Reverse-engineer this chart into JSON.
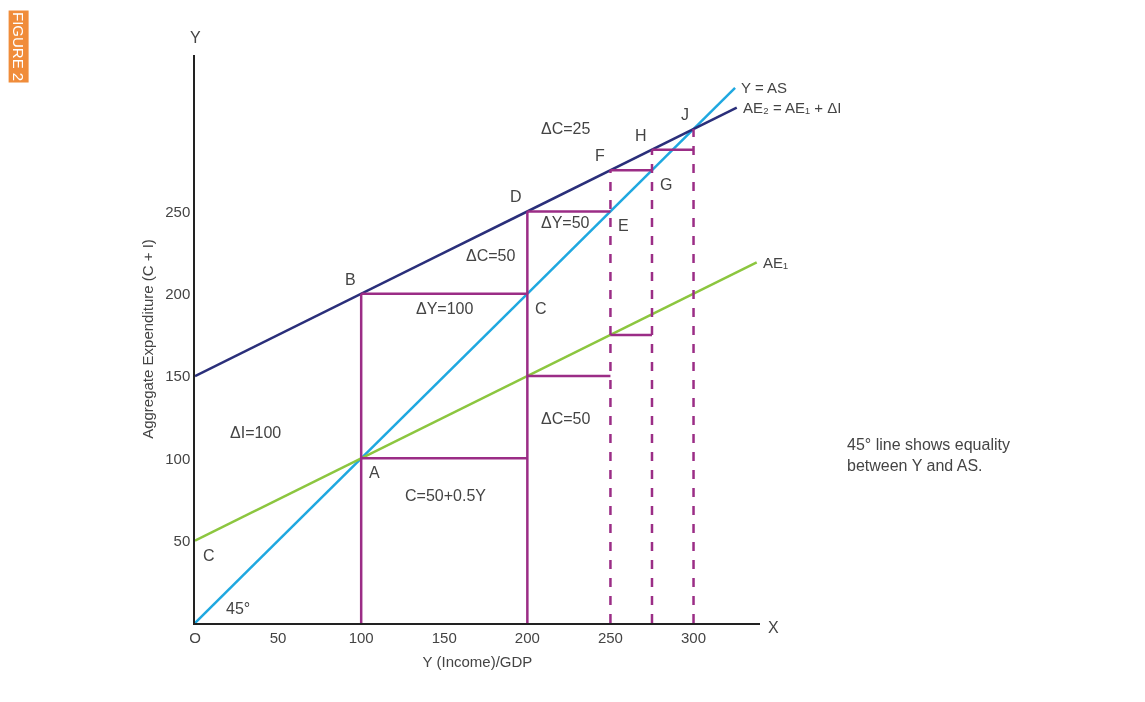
{
  "chart_data": {
    "type": "line",
    "xlabel": "Y (Income)/GDP",
    "ylabel": "Aggregate Expenditure (C + I)",
    "xlim": [
      0,
      340
    ],
    "ylim": [
      0,
      345
    ],
    "xticks": [
      {
        "value": 0,
        "label": "O"
      },
      50,
      100,
      150,
      200,
      250,
      300
    ],
    "yticks": [
      50,
      100,
      150,
      200,
      250
    ],
    "legend": false,
    "marker": "none",
    "series": [
      {
        "name": "Y = AS",
        "color": "#1fa8e0",
        "x": [
          0,
          325
        ],
        "values": [
          0,
          325
        ]
      },
      {
        "name": "AE₂ = AE₁ + ΔI",
        "color": "#2a2f7a",
        "x": [
          0,
          326
        ],
        "values": [
          150,
          313
        ]
      },
      {
        "name": "AE₁",
        "color": "#8cc63f",
        "x": [
          0,
          338
        ],
        "values": [
          50,
          219
        ]
      },
      {
        "color": "#9b2d86",
        "x": [
          100,
          100
        ],
        "values": [
          0,
          200
        ]
      },
      {
        "color": "#9b2d86",
        "x": [
          200,
          200
        ],
        "values": [
          0,
          250
        ]
      },
      {
        "color": "#9b2d86",
        "x": [
          250,
          250
        ],
        "values": [
          0,
          275
        ],
        "line_style": "dashed"
      },
      {
        "color": "#9b2d86",
        "x": [
          275,
          275
        ],
        "values": [
          0,
          287.5
        ],
        "line_style": "dashed"
      },
      {
        "color": "#9b2d86",
        "x": [
          300,
          300
        ],
        "values": [
          0,
          300
        ],
        "line_style": "dashed"
      },
      {
        "color": "#9b2d86",
        "x": [
          100,
          200
        ],
        "values": [
          100,
          100
        ]
      },
      {
        "color": "#9b2d86",
        "x": [
          100,
          200
        ],
        "values": [
          200,
          200
        ]
      },
      {
        "color": "#9b2d86",
        "x": [
          200,
          250
        ],
        "values": [
          150,
          150
        ]
      },
      {
        "color": "#9b2d86",
        "x": [
          200,
          250
        ],
        "values": [
          250,
          250
        ]
      },
      {
        "color": "#9b2d86",
        "x": [
          250,
          275
        ],
        "values": [
          175,
          175
        ]
      },
      {
        "color": "#9b2d86",
        "x": [
          250,
          275
        ],
        "values": [
          275,
          275
        ]
      },
      {
        "color": "#9b2d86",
        "x": [
          275,
          300
        ],
        "values": [
          287.5,
          287.5
        ]
      }
    ],
    "annotations": [
      "FIGURE 2",
      "45° line shows equality between Y and AS.",
      "Y",
      "X",
      "45°",
      "ΔC=25",
      "ΔY=50",
      "ΔC=50",
      "ΔY=100",
      "ΔC=50",
      "ΔI=100",
      "C=50+0.5Y",
      {
        "text": "A",
        "x": 100,
        "y": 100
      },
      {
        "text": "B",
        "x": 100,
        "y": 200
      },
      {
        "text": "C",
        "x": 200,
        "y": 200
      },
      {
        "text": "D",
        "x": 200,
        "y": 250
      },
      {
        "text": "E",
        "x": 250,
        "y": 250
      },
      {
        "text": "F",
        "x": 250,
        "y": 275
      },
      {
        "text": "G",
        "x": 275,
        "y": 275
      },
      {
        "text": "H",
        "x": 275,
        "y": 287.5
      },
      {
        "text": "J",
        "x": 300,
        "y": 300
      },
      {
        "text": "C",
        "x": 0,
        "y": 50
      }
    ]
  }
}
